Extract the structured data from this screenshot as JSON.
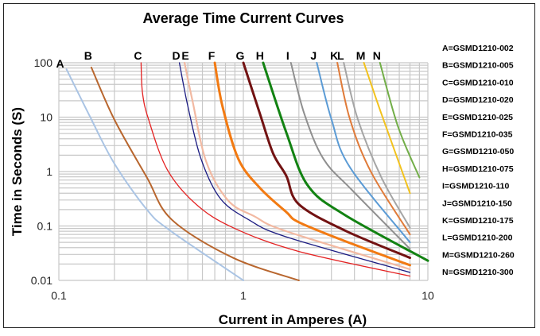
{
  "chart_data": {
    "type": "line",
    "title": "Average Time Current Curves",
    "xlabel": "Current in Amperes (A)",
    "ylabel": "Time in Seconds (S)",
    "xscale": "log",
    "yscale": "log",
    "xlim": [
      0.1,
      10
    ],
    "ylim": [
      0.01,
      100
    ],
    "x_tick_labels": [
      "0.1",
      "1",
      "10"
    ],
    "y_tick_labels": [
      "100",
      "10",
      "1",
      "0.1",
      "0.01"
    ],
    "grid": true,
    "legend_placement": "right",
    "series": [
      {
        "label": "A",
        "name": "A=GSMD1210-002",
        "color": "#aac4e4",
        "width": 2,
        "points": [
          [
            0.11,
            76
          ],
          [
            0.148,
            10
          ],
          [
            0.2,
            1.4
          ],
          [
            0.3,
            0.2
          ],
          [
            0.4,
            0.083
          ],
          [
            1,
            0.01
          ]
        ]
      },
      {
        "label": "B",
        "name": "B=GSMD1210-005",
        "color": "#b8662e",
        "width": 2,
        "points": [
          [
            0.15,
            82
          ],
          [
            0.2,
            9
          ],
          [
            0.3,
            0.78
          ],
          [
            0.41,
            0.13
          ],
          [
            0.88,
            0.026
          ],
          [
            2,
            0.01
          ]
        ]
      },
      {
        "label": "C",
        "name": "C=GSMD1210-010",
        "color": "#e42222",
        "width": 1.3,
        "points": [
          [
            0.279,
            100
          ],
          [
            0.284,
            28
          ],
          [
            0.306,
            9.2
          ],
          [
            0.386,
            1.1
          ],
          [
            0.555,
            0.25
          ],
          [
            0.88,
            0.093
          ],
          [
            2,
            0.034
          ],
          [
            8,
            0.012
          ]
        ]
      },
      {
        "label": "D",
        "name": "D=GSMD1210-020",
        "color": "#1c1c82",
        "width": 1.3,
        "points": [
          [
            0.45,
            100
          ],
          [
            0.5,
            16
          ],
          [
            0.59,
            1.7
          ],
          [
            0.75,
            0.32
          ],
          [
            1.07,
            0.13
          ],
          [
            1.71,
            0.063
          ],
          [
            8,
            0.014
          ]
        ]
      },
      {
        "label": "E",
        "name": "E=GSMD1210-025",
        "color": "#f2b9a2",
        "width": 2.2,
        "points": [
          [
            0.48,
            100
          ],
          [
            0.53,
            20
          ],
          [
            0.63,
            1.5
          ],
          [
            0.83,
            0.29
          ],
          [
            1.15,
            0.15
          ],
          [
            1.71,
            0.08
          ],
          [
            8,
            0.016
          ]
        ]
      },
      {
        "label": "F",
        "name": "F=GSMD1210-035",
        "color": "#f27a12",
        "width": 3,
        "points": [
          [
            0.7,
            100
          ],
          [
            0.77,
            16
          ],
          [
            0.94,
            1.7
          ],
          [
            1.23,
            0.5
          ],
          [
            1.71,
            0.18
          ],
          [
            2,
            0.117
          ],
          [
            3.54,
            0.053
          ],
          [
            8,
            0.019
          ]
        ]
      },
      {
        "label": "G",
        "name": "G=GSMD1210-050",
        "color": "#721212",
        "width": 3,
        "points": [
          [
            1,
            100
          ],
          [
            1.23,
            11.5
          ],
          [
            1.45,
            2.15
          ],
          [
            1.71,
            0.83
          ],
          [
            2,
            0.25
          ],
          [
            3.54,
            0.083
          ],
          [
            8,
            0.026
          ]
        ]
      },
      {
        "label": "H",
        "name": "H=GSMD1210-075",
        "color": "#128212",
        "width": 3,
        "points": [
          [
            1.28,
            100
          ],
          [
            1.71,
            5.2
          ],
          [
            2.23,
            0.56
          ],
          [
            3.54,
            0.16
          ],
          [
            10,
            0.023
          ]
        ]
      },
      {
        "label": "I",
        "name": "I=GSMD1210-110",
        "color": "#8f8f8f",
        "width": 2,
        "points": [
          [
            1.81,
            100
          ],
          [
            2.14,
            11.5
          ],
          [
            2.72,
            1.7
          ],
          [
            3.9,
            0.45
          ],
          [
            8,
            0.038
          ]
        ]
      },
      {
        "label": "J",
        "name": "J=GSMD1210-150",
        "color": "#5b9bd5",
        "width": 2,
        "points": [
          [
            2.5,
            100
          ],
          [
            3,
            9.2
          ],
          [
            3.78,
            1.2
          ],
          [
            8,
            0.05
          ]
        ]
      },
      {
        "label": "K",
        "name": "K=GSMD1210-175",
        "color": "#e07b39",
        "width": 2,
        "points": [
          [
            3.23,
            100
          ],
          [
            3.78,
            9.2
          ],
          [
            4.93,
            0.97
          ],
          [
            8,
            0.07
          ]
        ]
      },
      {
        "label": "L",
        "name": "L=GSMD1210-200",
        "color": "#a5a5a5",
        "width": 2,
        "points": [
          [
            3.5,
            100
          ],
          [
            4.17,
            9.2
          ],
          [
            5.6,
            0.78
          ],
          [
            8,
            0.093
          ]
        ]
      },
      {
        "label": "M",
        "name": "M=GSMD1210-260",
        "color": "#f2c21e",
        "width": 2,
        "points": [
          [
            4.5,
            100
          ],
          [
            5.6,
            11.5
          ],
          [
            8,
            0.4
          ]
        ]
      },
      {
        "label": "N",
        "name": "N=GSMD1210-300",
        "color": "#72ae48",
        "width": 2,
        "points": [
          [
            5.5,
            100
          ],
          [
            6.9,
            6.6
          ],
          [
            9,
            0.78
          ]
        ]
      }
    ]
  }
}
